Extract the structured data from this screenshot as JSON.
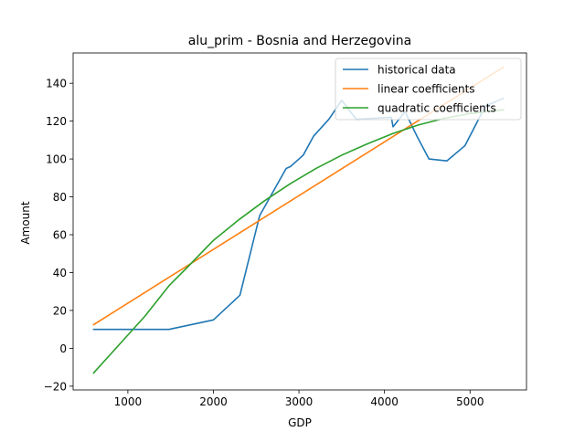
{
  "chart_data": {
    "type": "line",
    "title": "alu_prim - Bosnia and Herzegovina",
    "xlabel": "GDP",
    "ylabel": "Amount",
    "xlim": [
      360,
      5660
    ],
    "ylim": [
      -22,
      156
    ],
    "xticks": [
      1000,
      2000,
      3000,
      4000,
      5000
    ],
    "yticks": [
      -20,
      0,
      20,
      40,
      60,
      80,
      100,
      120,
      140
    ],
    "grid": false,
    "legend_position": "top-right",
    "series": [
      {
        "name": "historical data",
        "color": "#1f77b4",
        "x": [
          600,
          1000,
          1480,
          2000,
          2310,
          2540,
          2850,
          2900,
          3050,
          3170,
          3350,
          3500,
          3670,
          4080,
          4100,
          4240,
          4380,
          4520,
          4730,
          4940,
          5180,
          5390
        ],
        "y": [
          10,
          10,
          10,
          15,
          28,
          70,
          95,
          96,
          102,
          112,
          121,
          131,
          121,
          122,
          117,
          125,
          112,
          100,
          99,
          107,
          128,
          132
        ]
      },
      {
        "name": "linear coefficients",
        "color": "#ff7f0e",
        "x": [
          600,
          5390
        ],
        "y": [
          12.5,
          148.5
        ]
      },
      {
        "name": "quadratic coefficients",
        "color": "#2ca02c",
        "x": [
          600,
          800,
          1000,
          1200,
          1480,
          1700,
          2000,
          2300,
          2600,
          2900,
          3200,
          3500,
          3800,
          4100,
          4400,
          4700,
          5000,
          5390
        ],
        "y": [
          -13,
          -3,
          7,
          17,
          33,
          43,
          57,
          68,
          78,
          87,
          95,
          102,
          108,
          113.5,
          118,
          121.5,
          124,
          126
        ]
      }
    ]
  }
}
